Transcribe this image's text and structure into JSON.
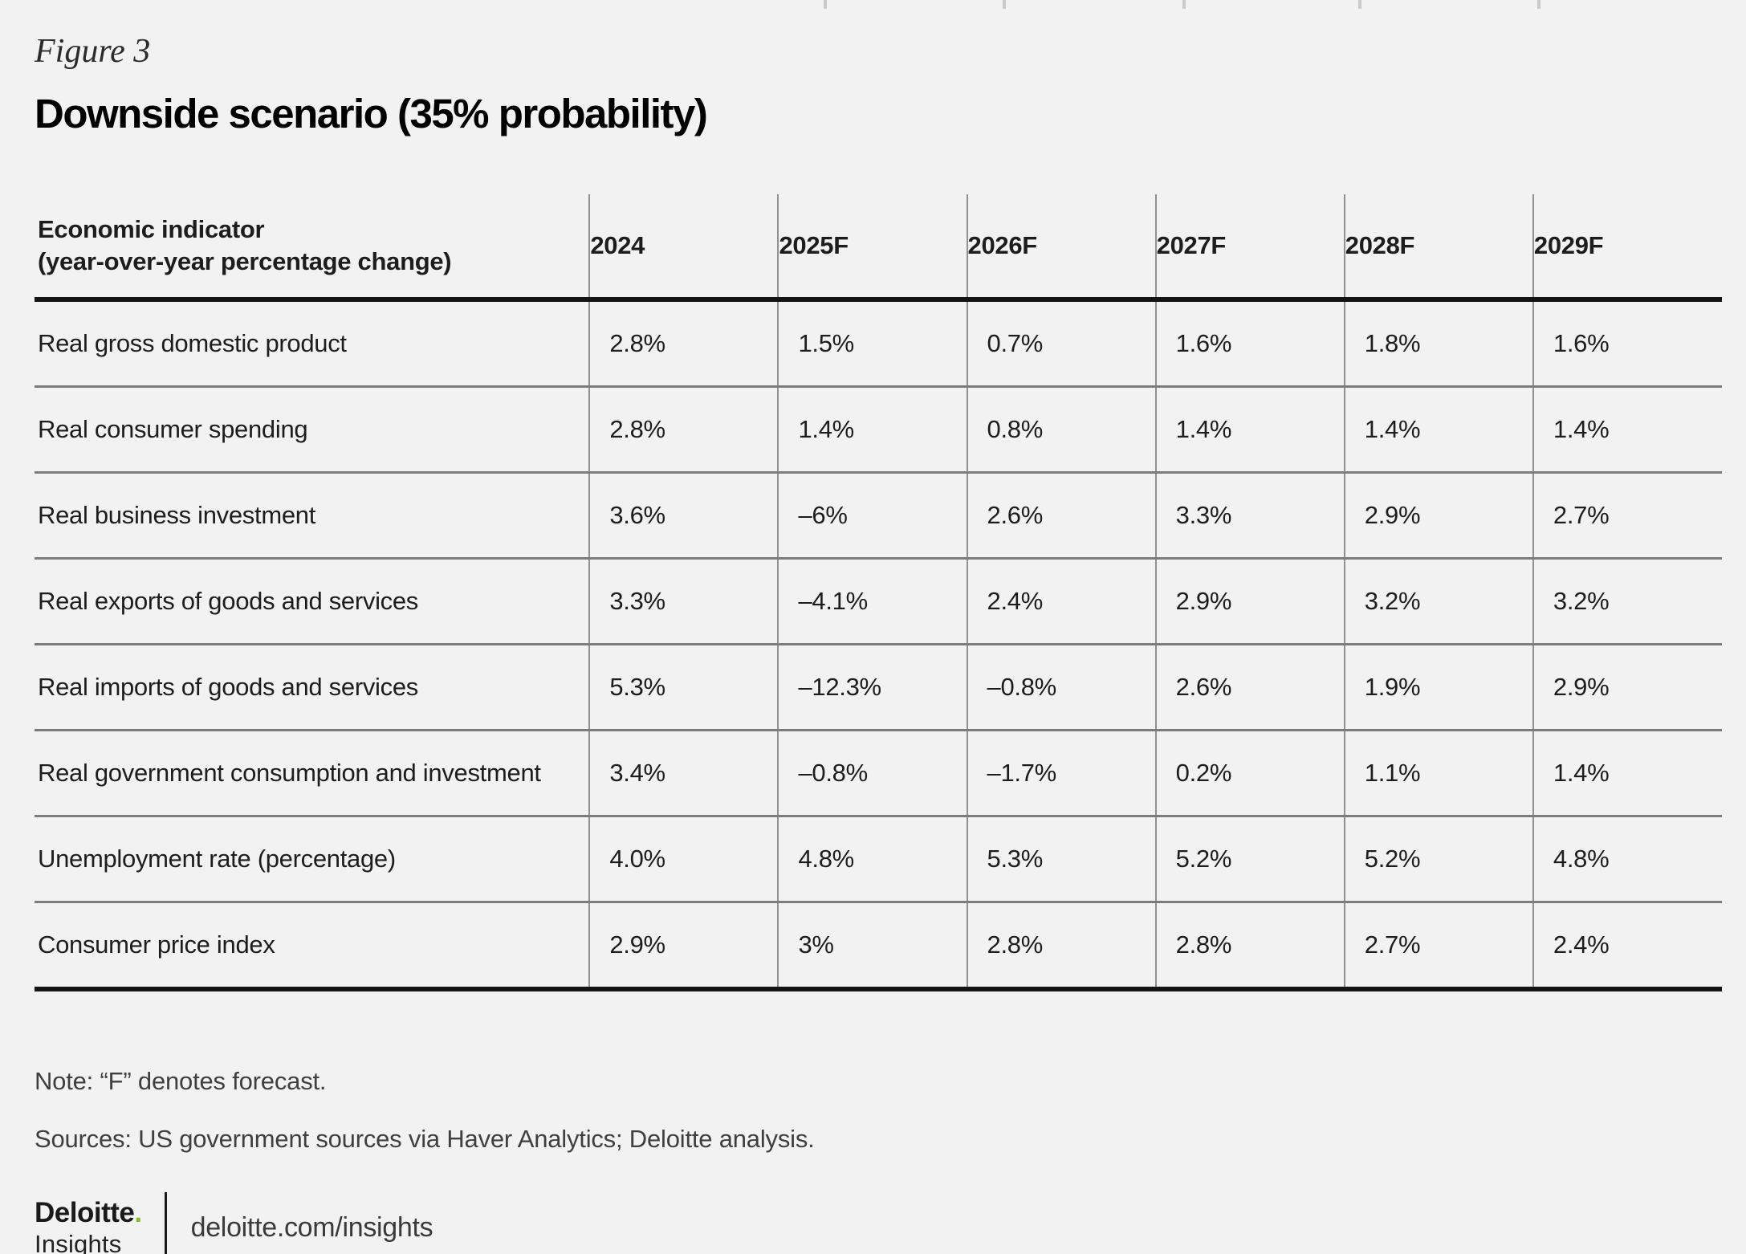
{
  "figure_label": "Figure 3",
  "title": "Downside scenario (35% probability)",
  "table": {
    "indicator_header_line1": "Economic indicator",
    "indicator_header_line2": "(year-over-year percentage change)",
    "year_headers": [
      "2024",
      "2025F",
      "2026F",
      "2027F",
      "2028F",
      "2029F"
    ],
    "rows": [
      {
        "label": "Real gross domestic product",
        "values": [
          "2.8%",
          "1.5%",
          "0.7%",
          "1.6%",
          "1.8%",
          "1.6%"
        ]
      },
      {
        "label": "Real consumer spending",
        "values": [
          "2.8%",
          "1.4%",
          "0.8%",
          "1.4%",
          "1.4%",
          "1.4%"
        ]
      },
      {
        "label": "Real business investment",
        "values": [
          "3.6%",
          "–6%",
          "2.6%",
          "3.3%",
          "2.9%",
          "2.7%"
        ]
      },
      {
        "label": "Real exports of goods and services",
        "values": [
          "3.3%",
          "–4.1%",
          "2.4%",
          "2.9%",
          "3.2%",
          "3.2%"
        ]
      },
      {
        "label": "Real imports of goods and services",
        "values": [
          "5.3%",
          "–12.3%",
          "–0.8%",
          "2.6%",
          "1.9%",
          "2.9%"
        ]
      },
      {
        "label": "Real government consumption and investment",
        "values": [
          "3.4%",
          "–0.8%",
          "–1.7%",
          "0.2%",
          "1.1%",
          "1.4%"
        ]
      },
      {
        "label": "Unemployment rate (percentage)",
        "values": [
          "4.0%",
          "4.8%",
          "5.3%",
          "5.2%",
          "5.2%",
          "4.8%"
        ]
      },
      {
        "label": "Consumer price index",
        "values": [
          "2.9%",
          "3%",
          "2.8%",
          "2.8%",
          "2.7%",
          "2.4%"
        ]
      }
    ]
  },
  "note": "Note: “F” denotes forecast.",
  "sources": "Sources: US government sources via Haver Analytics; Deloitte analysis.",
  "footer": {
    "brand_name": "Deloitte",
    "brand_dot": ".",
    "brand_sub": "Insights",
    "url": "deloitte.com/insights"
  },
  "colors": {
    "background": "#f2f2f2",
    "text": "#1a1a1a",
    "note_text": "#3f3f3f",
    "thick_rule": "#141414",
    "row_rule": "#7c7c7c",
    "column_rule": "#919191",
    "brand_green": "#86bc25"
  },
  "chart_data": {
    "type": "table",
    "title": "Downside scenario (35% probability)",
    "subtitle": "Figure 3",
    "columns": [
      "Economic indicator (year-over-year percentage change)",
      "2024",
      "2025F",
      "2026F",
      "2027F",
      "2028F",
      "2029F"
    ],
    "rows": [
      [
        "Real gross domestic product",
        2.8,
        1.5,
        0.7,
        1.6,
        1.8,
        1.6
      ],
      [
        "Real consumer spending",
        2.8,
        1.4,
        0.8,
        1.4,
        1.4,
        1.4
      ],
      [
        "Real business investment",
        3.6,
        -6.0,
        2.6,
        3.3,
        2.9,
        2.7
      ],
      [
        "Real exports of goods and services",
        3.3,
        -4.1,
        2.4,
        2.9,
        3.2,
        3.2
      ],
      [
        "Real imports of goods and services",
        5.3,
        -12.3,
        -0.8,
        2.6,
        1.9,
        2.9
      ],
      [
        "Real government consumption and investment",
        3.4,
        -0.8,
        -1.7,
        0.2,
        1.1,
        1.4
      ],
      [
        "Unemployment rate (percentage)",
        4.0,
        4.8,
        5.3,
        5.2,
        5.2,
        4.8
      ],
      [
        "Consumer price index",
        2.9,
        3.0,
        2.8,
        2.8,
        2.7,
        2.4
      ]
    ],
    "units": "percent (year-over-year change); unemployment rate in percent of labor force",
    "note": "F denotes forecast; scenario probability 35%"
  }
}
